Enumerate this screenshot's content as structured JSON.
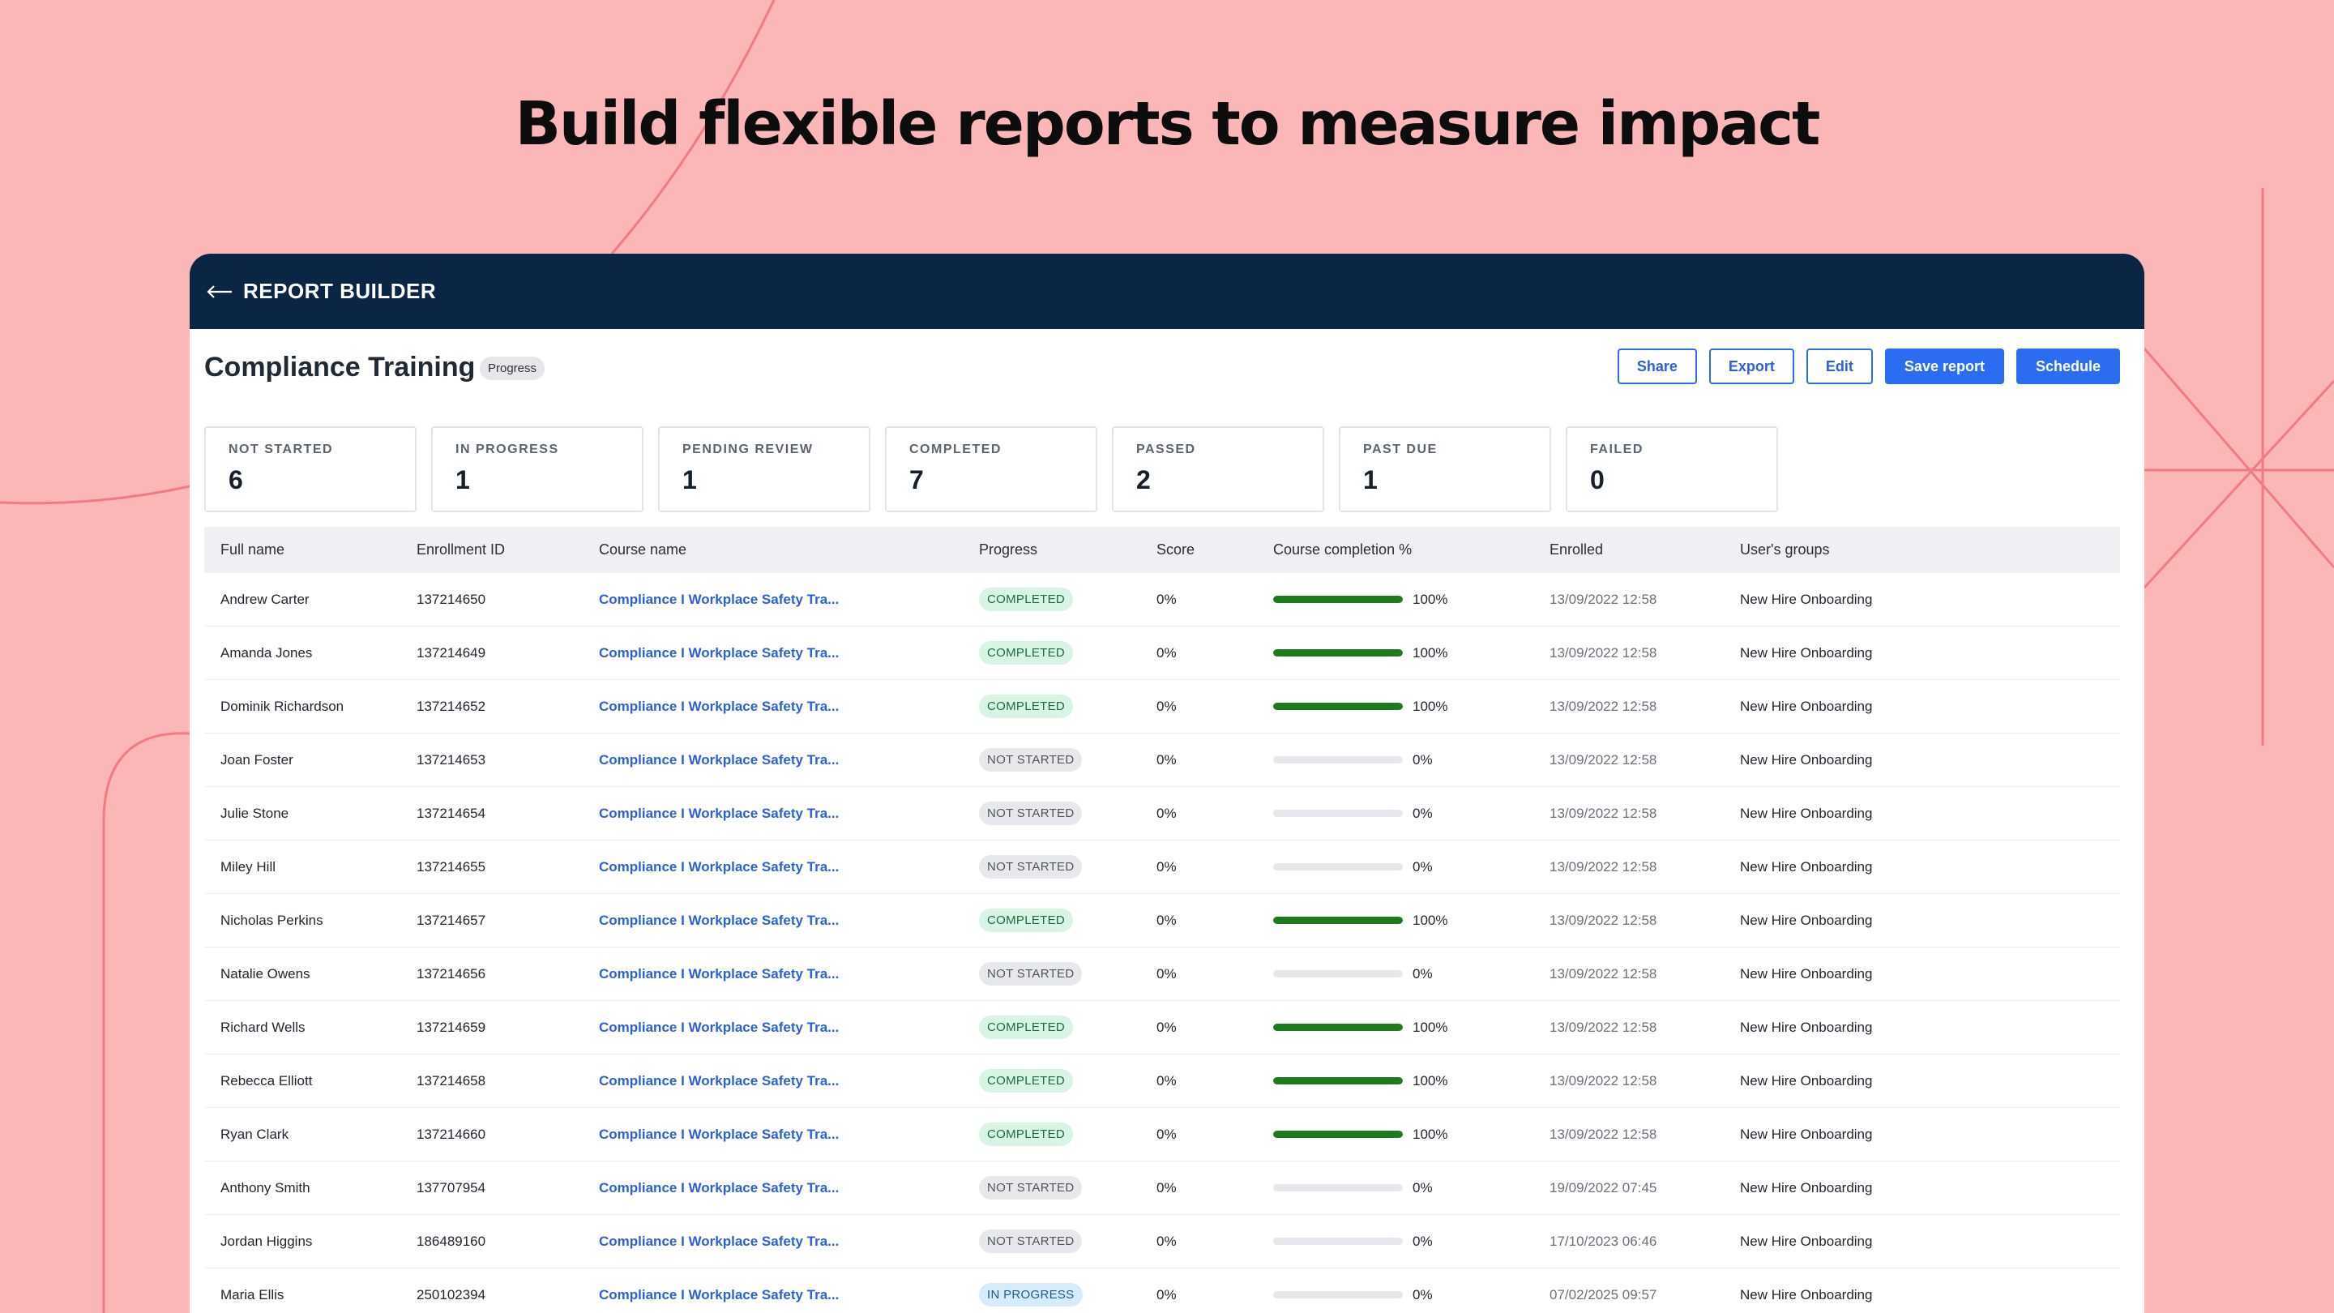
{
  "headline": "Build flexible reports to measure impact",
  "colors": {
    "background": "#fbb6b8",
    "topbar": "#0b2545",
    "accent": "#2c6cf0",
    "progress": "#1e7a1e"
  },
  "topbar": {
    "back_icon": "arrow-left-icon",
    "title": "REPORT BUILDER"
  },
  "report": {
    "title": "Compliance Training",
    "badge": "Progress",
    "actions": {
      "share": "Share",
      "export": "Export",
      "edit": "Edit",
      "save": "Save report",
      "schedule": "Schedule"
    }
  },
  "stats": [
    {
      "label": "NOT STARTED",
      "value": "6"
    },
    {
      "label": "IN PROGRESS",
      "value": "1"
    },
    {
      "label": "PENDING REVIEW",
      "value": "1"
    },
    {
      "label": "COMPLETED",
      "value": "7"
    },
    {
      "label": "PASSED",
      "value": "2"
    },
    {
      "label": "PAST DUE",
      "value": "1"
    },
    {
      "label": "FAILED",
      "value": "0"
    }
  ],
  "table": {
    "columns": [
      "Full name",
      "Enrollment ID",
      "Course name",
      "Progress",
      "Score",
      "Course completion %",
      "Enrolled",
      "User's groups"
    ],
    "rows": [
      {
        "name": "Andrew Carter",
        "id": "137214650",
        "course": "Compliance I Workplace Safety Tra...",
        "progress": "COMPLETED",
        "score": "0%",
        "completion": 100,
        "completion_label": "100%",
        "enrolled": "13/09/2022 12:58",
        "groups": "New Hire Onboarding"
      },
      {
        "name": "Amanda Jones",
        "id": "137214649",
        "course": "Compliance I Workplace Safety Tra...",
        "progress": "COMPLETED",
        "score": "0%",
        "completion": 100,
        "completion_label": "100%",
        "enrolled": "13/09/2022 12:58",
        "groups": "New Hire Onboarding"
      },
      {
        "name": "Dominik Richardson",
        "id": "137214652",
        "course": "Compliance I Workplace Safety Tra...",
        "progress": "COMPLETED",
        "score": "0%",
        "completion": 100,
        "completion_label": "100%",
        "enrolled": "13/09/2022 12:58",
        "groups": "New Hire Onboarding"
      },
      {
        "name": "Joan Foster",
        "id": "137214653",
        "course": "Compliance I Workplace Safety Tra...",
        "progress": "NOT STARTED",
        "score": "0%",
        "completion": 0,
        "completion_label": "0%",
        "enrolled": "13/09/2022 12:58",
        "groups": "New Hire Onboarding"
      },
      {
        "name": "Julie Stone",
        "id": "137214654",
        "course": "Compliance I Workplace Safety Tra...",
        "progress": "NOT STARTED",
        "score": "0%",
        "completion": 0,
        "completion_label": "0%",
        "enrolled": "13/09/2022 12:58",
        "groups": "New Hire Onboarding"
      },
      {
        "name": "Miley Hill",
        "id": "137214655",
        "course": "Compliance I Workplace Safety Tra...",
        "progress": "NOT STARTED",
        "score": "0%",
        "completion": 0,
        "completion_label": "0%",
        "enrolled": "13/09/2022 12:58",
        "groups": "New Hire Onboarding"
      },
      {
        "name": "Nicholas Perkins",
        "id": "137214657",
        "course": "Compliance I Workplace Safety Tra...",
        "progress": "COMPLETED",
        "score": "0%",
        "completion": 100,
        "completion_label": "100%",
        "enrolled": "13/09/2022 12:58",
        "groups": "New Hire Onboarding"
      },
      {
        "name": "Natalie Owens",
        "id": "137214656",
        "course": "Compliance I Workplace Safety Tra...",
        "progress": "NOT STARTED",
        "score": "0%",
        "completion": 0,
        "completion_label": "0%",
        "enrolled": "13/09/2022 12:58",
        "groups": "New Hire Onboarding"
      },
      {
        "name": "Richard Wells",
        "id": "137214659",
        "course": "Compliance I Workplace Safety Tra...",
        "progress": "COMPLETED",
        "score": "0%",
        "completion": 100,
        "completion_label": "100%",
        "enrolled": "13/09/2022 12:58",
        "groups": "New Hire Onboarding"
      },
      {
        "name": "Rebecca Elliott",
        "id": "137214658",
        "course": "Compliance I Workplace Safety Tra...",
        "progress": "COMPLETED",
        "score": "0%",
        "completion": 100,
        "completion_label": "100%",
        "enrolled": "13/09/2022 12:58",
        "groups": "New Hire Onboarding"
      },
      {
        "name": "Ryan Clark",
        "id": "137214660",
        "course": "Compliance I Workplace Safety Tra...",
        "progress": "COMPLETED",
        "score": "0%",
        "completion": 100,
        "completion_label": "100%",
        "enrolled": "13/09/2022 12:58",
        "groups": "New Hire Onboarding"
      },
      {
        "name": "Anthony Smith",
        "id": "137707954",
        "course": "Compliance I Workplace Safety Tra...",
        "progress": "NOT STARTED",
        "score": "0%",
        "completion": 0,
        "completion_label": "0%",
        "enrolled": "19/09/2022 07:45",
        "groups": "New Hire Onboarding"
      },
      {
        "name": "Jordan Higgins",
        "id": "186489160",
        "course": "Compliance I Workplace Safety Tra...",
        "progress": "NOT STARTED",
        "score": "0%",
        "completion": 0,
        "completion_label": "0%",
        "enrolled": "17/10/2023 06:46",
        "groups": "New Hire Onboarding"
      },
      {
        "name": "Maria Ellis",
        "id": "250102394",
        "course": "Compliance I Workplace Safety Tra...",
        "progress": "IN PROGRESS",
        "score": "0%",
        "completion": 0,
        "completion_label": "0%",
        "enrolled": "07/02/2025 09:57",
        "groups": "New Hire Onboarding"
      }
    ]
  }
}
